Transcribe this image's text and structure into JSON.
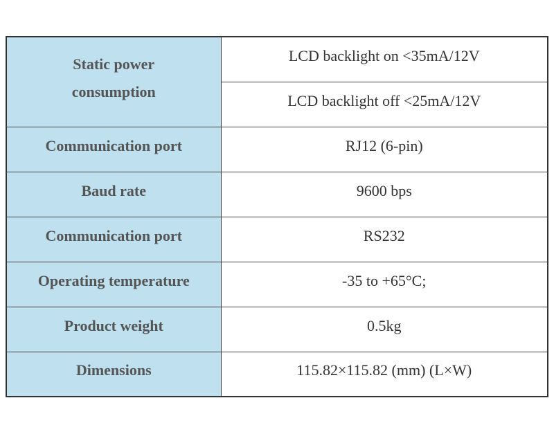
{
  "table": {
    "rows": [
      {
        "label": "Static power consumption",
        "values": [
          "LCD backlight on <35mA/12V",
          "LCD backlight off <25mA/12V"
        ]
      },
      {
        "label": "Communication port",
        "values": [
          "RJ12 (6-pin)"
        ]
      },
      {
        "label": "Baud rate",
        "values": [
          "9600 bps"
        ]
      },
      {
        "label": "Communication port",
        "values": [
          "RS232"
        ]
      },
      {
        "label": "Operating temperature",
        "values": [
          "-35 to +65°C;"
        ]
      },
      {
        "label": "Product weight",
        "values": [
          "0.5kg"
        ]
      },
      {
        "label": "Dimensions",
        "values": [
          "115.82×115.82 (mm) (L×W)"
        ]
      }
    ]
  }
}
